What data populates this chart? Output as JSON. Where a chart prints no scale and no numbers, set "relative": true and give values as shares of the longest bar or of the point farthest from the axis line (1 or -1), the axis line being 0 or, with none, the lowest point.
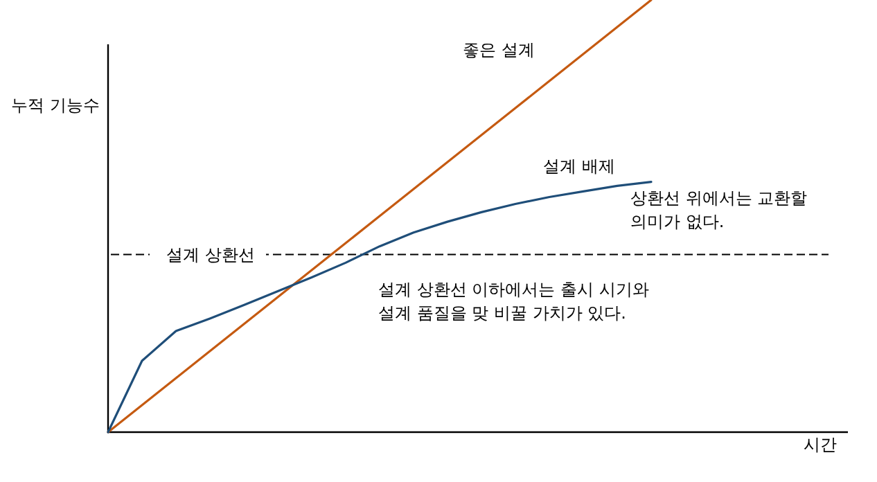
{
  "chart_data": {
    "type": "line",
    "relative": true,
    "ylabel": "누적 기능수",
    "categories": [
      null,
      null,
      null,
      null,
      null,
      null,
      null,
      null,
      null,
      null,
      null,
      null,
      null,
      null,
      null,
      null,
      null
    ],
    "series": [
      {
        "name": "좋은 설계",
        "color": "#c55a11",
        "values": [
          0,
          0.0625,
          0.125,
          0.1875,
          0.25,
          0.3125,
          0.375,
          0.4375,
          0.5,
          0.5625,
          0.625,
          0.6875,
          0.75,
          0.8125,
          0.875,
          0.9375,
          1
        ]
      },
      {
        "name": "설계 배제",
        "color": "#1f4e79",
        "values": [
          0,
          0.165,
          0.234,
          0.263,
          0.294,
          0.326,
          0.358,
          0.392,
          0.43,
          0.462,
          0.487,
          0.509,
          0.528,
          0.544,
          0.557,
          0.57,
          0.579
        ]
      }
    ],
    "ref_lines": [
      {
        "axis": "y",
        "value": 0.411,
        "label": "설계 상환선",
        "line_style": "dashed",
        "color": "#000000"
      }
    ],
    "annotations": [
      "상환선 위에서는 교환할\n의미가 없다.",
      "설계 상환선 이하에서는 출시 시기와\n설계 품질을 맞 비꿀 가치가 있다.",
      "시간"
    ]
  }
}
